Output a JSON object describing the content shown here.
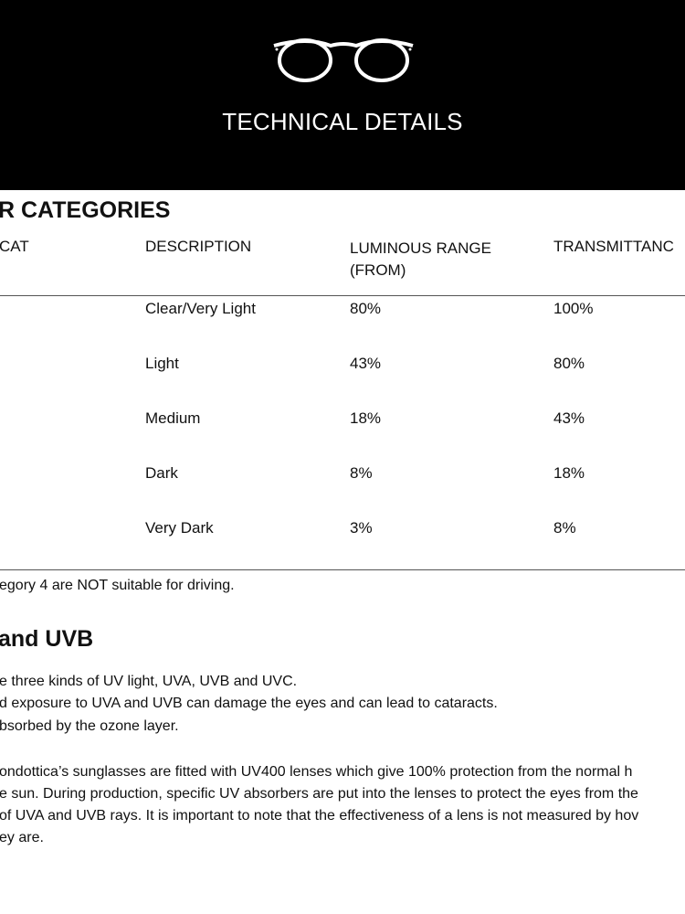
{
  "header": {
    "title": "TECHNICAL DETAILS",
    "icon": "glasses-icon"
  },
  "categories": {
    "heading": "R CATEGORIES",
    "columns": [
      "CAT",
      "DESCRIPTION",
      "LUMINOUS RANGE (FROM)",
      "TRANSMITTANC"
    ],
    "rows": [
      {
        "desc": "Clear/Very Light",
        "from": "80%",
        "to": "100%"
      },
      {
        "desc": "Light",
        "from": "43%",
        "to": "80%"
      },
      {
        "desc": "Medium",
        "from": "18%",
        "to": "43%"
      },
      {
        "desc": "Dark",
        "from": "8%",
        "to": "18%"
      },
      {
        "desc": "Very Dark",
        "from": "3%",
        "to": "8%"
      }
    ],
    "note": "egory 4 are NOT suitable for driving."
  },
  "uv": {
    "heading": "and UVB",
    "lines": [
      "e three kinds of UV light, UVA, UVB and UVC.",
      "d exposure to UVA and UVB can damage the eyes and can lead to cataracts.",
      "bsorbed by the ozone layer."
    ],
    "para": [
      "ondottica’s sunglasses are fitted with UV400 lenses which give 100% protection from the normal h",
      "e sun. During production, specific UV absorbers are put into the lenses to protect the eyes from the",
      "of UVA and UVB rays. It is important to note that the effectiveness of a lens is not measured by hov",
      "ey are."
    ]
  }
}
